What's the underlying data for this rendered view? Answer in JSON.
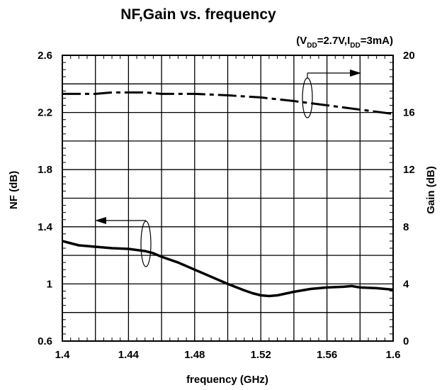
{
  "chart_data": {
    "type": "line",
    "title": "NF,Gain vs. frequency",
    "condition": {
      "open": "(V",
      "vdd_sub": "DD",
      "mid": "=2.7V,I",
      "idd_sub": "DD",
      "close": "=3mA)"
    },
    "xlabel": "frequency (GHz)",
    "ylabel_left": "NF (dB)",
    "ylabel_right": "Gain (dB)",
    "xlim": [
      1.4,
      1.6
    ],
    "ylim_left": [
      0.6,
      2.6
    ],
    "ylim_right": [
      0,
      20
    ],
    "x_ticks": [
      "1.4",
      "1.44",
      "1.48",
      "1.52",
      "1.56",
      "1.6"
    ],
    "y_left_ticks": [
      "0.6",
      "1",
      "1.4",
      "1.8",
      "2.2",
      "2.6"
    ],
    "y_right_ticks": [
      "0",
      "4",
      "8",
      "12",
      "16",
      "20"
    ],
    "grid": true,
    "series": [
      {
        "axis": "left",
        "style": "solid",
        "x": [
          1.4,
          1.405,
          1.41,
          1.42,
          1.43,
          1.44,
          1.45,
          1.455,
          1.46,
          1.47,
          1.48,
          1.49,
          1.5,
          1.51,
          1.515,
          1.52,
          1.525,
          1.53,
          1.54,
          1.55,
          1.56,
          1.57,
          1.575,
          1.58,
          1.59,
          1.6
        ],
        "values": [
          1.3,
          1.285,
          1.27,
          1.26,
          1.25,
          1.245,
          1.23,
          1.215,
          1.19,
          1.15,
          1.1,
          1.05,
          1.0,
          0.955,
          0.935,
          0.92,
          0.915,
          0.92,
          0.945,
          0.965,
          0.975,
          0.98,
          0.985,
          0.975,
          0.97,
          0.96
        ]
      },
      {
        "axis": "right",
        "style": "dashed",
        "x": [
          1.4,
          1.42,
          1.43,
          1.44,
          1.45,
          1.46,
          1.48,
          1.5,
          1.52,
          1.54,
          1.56,
          1.58,
          1.6
        ],
        "values": [
          17.3,
          17.3,
          17.4,
          17.4,
          17.4,
          17.3,
          17.3,
          17.2,
          17.05,
          16.8,
          16.5,
          16.2,
          15.9
        ]
      }
    ]
  }
}
